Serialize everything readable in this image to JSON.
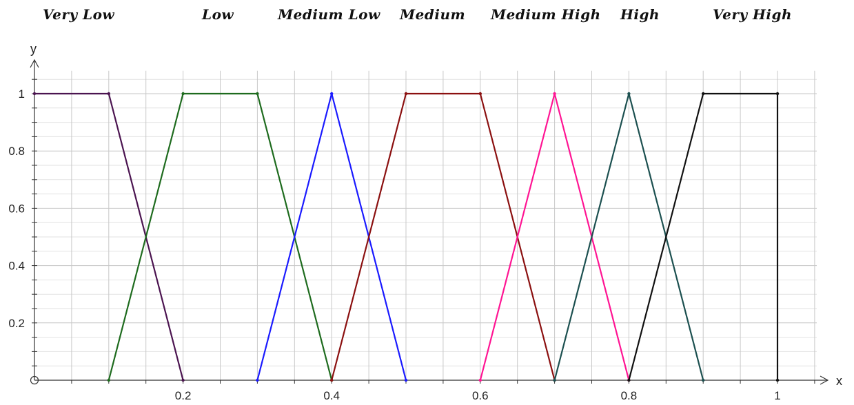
{
  "chart_data": {
    "type": "line",
    "xlabel": "x",
    "ylabel": "y",
    "xlim": [
      0,
      1.05
    ],
    "ylim": [
      0,
      1.08
    ],
    "x_ticks": [
      0.2,
      0.4,
      0.6,
      0.8,
      1
    ],
    "x_tick_labels": [
      "0.2",
      "0.4",
      "0.6",
      "0.8",
      "1"
    ],
    "y_ticks": [
      0.2,
      0.4,
      0.6,
      0.8,
      1
    ],
    "y_tick_labels": [
      "0.2",
      "0.4",
      "0.6",
      "0.8",
      "1"
    ],
    "grid": true,
    "series": [
      {
        "name": "Very Low",
        "color": "#4b1450",
        "points": [
          [
            0,
            1
          ],
          [
            0.1,
            1
          ],
          [
            0.2,
            0
          ]
        ]
      },
      {
        "name": "Low",
        "color": "#1e6b1e",
        "points": [
          [
            0.1,
            0
          ],
          [
            0.2,
            1
          ],
          [
            0.3,
            1
          ],
          [
            0.4,
            0
          ]
        ]
      },
      {
        "name": "Medium Low",
        "color": "#1a1aff",
        "points": [
          [
            0.3,
            0
          ],
          [
            0.4,
            1
          ],
          [
            0.5,
            0
          ]
        ]
      },
      {
        "name": "Medium",
        "color": "#8b1010",
        "points": [
          [
            0.4,
            0
          ],
          [
            0.5,
            1
          ],
          [
            0.6,
            1
          ],
          [
            0.7,
            0
          ]
        ]
      },
      {
        "name": "Medium High",
        "color": "#ff1493",
        "points": [
          [
            0.6,
            0
          ],
          [
            0.7,
            1
          ],
          [
            0.8,
            0
          ]
        ]
      },
      {
        "name": "High",
        "color": "#1c5050",
        "points": [
          [
            0.7,
            0
          ],
          [
            0.8,
            1
          ],
          [
            0.9,
            0
          ]
        ]
      },
      {
        "name": "Very High",
        "color": "#111111",
        "points": [
          [
            0.8,
            0
          ],
          [
            0.9,
            1
          ],
          [
            1,
            1
          ],
          [
            1,
            0
          ]
        ]
      }
    ]
  }
}
